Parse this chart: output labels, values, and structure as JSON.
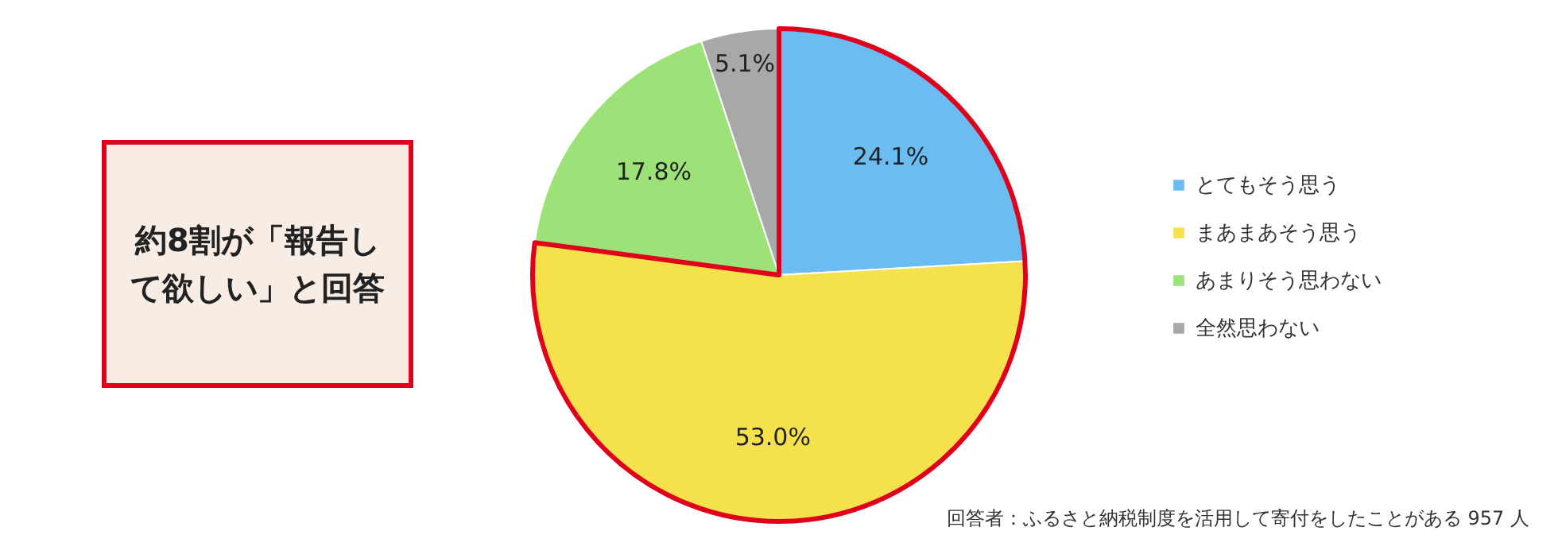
{
  "chart_data": {
    "type": "pie",
    "categories": [
      "とてもそう思う",
      "まあまあそう思う",
      "あまりそう思わない",
      "全然思わない"
    ],
    "values": [
      24.1,
      53.0,
      17.8,
      5.1
    ],
    "colors": [
      "#6bbdf1",
      "#f5e14b",
      "#9de279",
      "#a8a8a8"
    ],
    "value_labels": [
      "24.1%",
      "53.0%",
      "17.8%",
      "5.1%"
    ],
    "legend": "right",
    "annotations": [
      "約8割が「報告して欲しい」と回答",
      "回答者：ふるさと納税制度を活用して寄付をしたことがある 957 人"
    ]
  }
}
